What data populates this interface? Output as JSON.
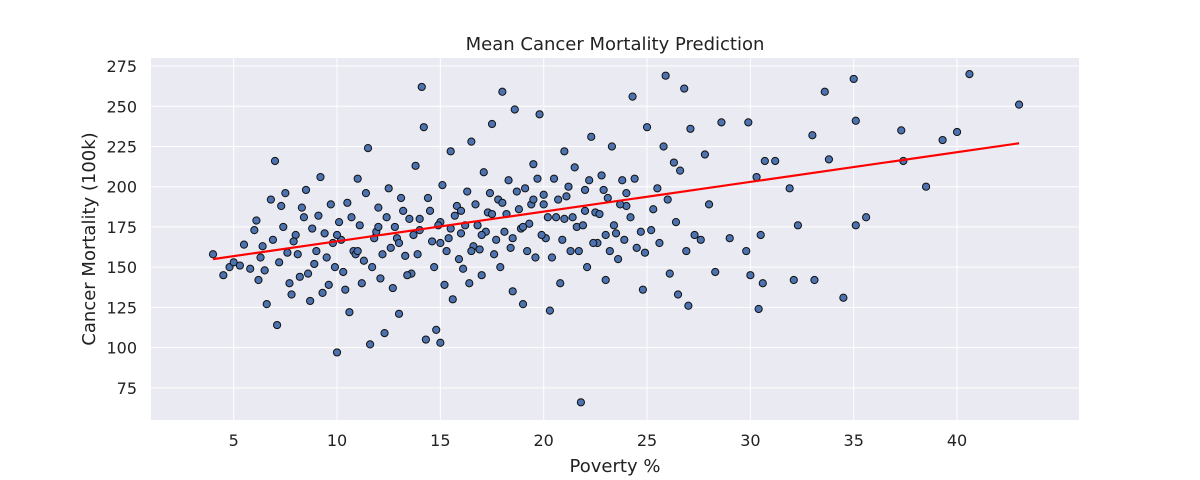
{
  "chart_data": {
    "type": "scatter",
    "title": "Mean Cancer Mortality Prediction",
    "xlabel": "Poverty %",
    "ylabel": "Cancer Mortality (100k)",
    "xlim": [
      1.0,
      45.9
    ],
    "ylim": [
      55,
      280
    ],
    "xticks": [
      5,
      10,
      15,
      20,
      25,
      30,
      35,
      40
    ],
    "yticks": [
      75,
      100,
      125,
      150,
      175,
      200,
      225,
      250,
      275
    ],
    "grid": true,
    "colors": {
      "background": "#EAEAF2",
      "grid": "#FFFFFF",
      "point_fill": "#4C72B0",
      "point_edge": "#111111",
      "regression_line": "#FF0000"
    },
    "series": [
      {
        "values": [
          [
            4.0,
            158
          ],
          [
            4.5,
            145
          ],
          [
            4.8,
            150
          ],
          [
            5.0,
            153
          ],
          [
            5.3,
            151
          ],
          [
            5.5,
            164
          ],
          [
            5.8,
            149
          ],
          [
            6.0,
            173
          ],
          [
            6.1,
            179
          ],
          [
            6.3,
            156
          ],
          [
            6.5,
            148
          ],
          [
            6.6,
            127
          ],
          [
            6.8,
            192
          ],
          [
            6.9,
            167
          ],
          [
            7.0,
            216
          ],
          [
            7.1,
            114
          ],
          [
            7.3,
            188
          ],
          [
            7.5,
            196
          ],
          [
            7.6,
            159
          ],
          [
            7.8,
            133
          ],
          [
            8.0,
            170
          ],
          [
            8.2,
            144
          ],
          [
            8.4,
            181
          ],
          [
            8.5,
            198
          ],
          [
            8.7,
            129
          ],
          [
            8.9,
            152
          ],
          [
            9.1,
            182
          ],
          [
            9.2,
            206
          ],
          [
            9.4,
            171
          ],
          [
            9.6,
            139
          ],
          [
            9.8,
            165
          ],
          [
            10.0,
            97
          ],
          [
            10.1,
            178
          ],
          [
            10.3,
            147
          ],
          [
            10.5,
            190
          ],
          [
            10.6,
            122
          ],
          [
            10.8,
            160
          ],
          [
            11.0,
            205
          ],
          [
            11.1,
            176
          ],
          [
            11.3,
            154
          ],
          [
            11.5,
            224
          ],
          [
            11.6,
            102
          ],
          [
            11.8,
            168
          ],
          [
            12.0,
            187
          ],
          [
            12.1,
            143
          ],
          [
            12.3,
            109
          ],
          [
            12.5,
            199
          ],
          [
            12.6,
            162
          ],
          [
            12.8,
            175
          ],
          [
            13.0,
            121
          ],
          [
            13.1,
            193
          ],
          [
            13.3,
            157
          ],
          [
            13.5,
            180
          ],
          [
            13.6,
            146
          ],
          [
            13.8,
            213
          ],
          [
            14.0,
            173
          ],
          [
            14.1,
            262
          ],
          [
            14.2,
            237
          ],
          [
            14.3,
            105
          ],
          [
            14.5,
            185
          ],
          [
            14.6,
            166
          ],
          [
            14.8,
            111
          ],
          [
            15.0,
            103
          ],
          [
            15.0,
            178
          ],
          [
            15.1,
            201
          ],
          [
            15.3,
            160
          ],
          [
            15.5,
            222
          ],
          [
            15.6,
            130
          ],
          [
            15.8,
            188
          ],
          [
            16.0,
            171
          ],
          [
            16.1,
            149
          ],
          [
            16.3,
            197
          ],
          [
            16.5,
            228
          ],
          [
            16.6,
            163
          ],
          [
            16.8,
            176
          ],
          [
            17.0,
            145
          ],
          [
            17.1,
            209
          ],
          [
            17.3,
            184
          ],
          [
            17.5,
            239
          ],
          [
            17.6,
            158
          ],
          [
            17.8,
            192
          ],
          [
            18.0,
            259
          ],
          [
            18.1,
            172
          ],
          [
            18.3,
            204
          ],
          [
            18.5,
            135
          ],
          [
            18.6,
            248
          ],
          [
            18.8,
            186
          ],
          [
            19.0,
            127
          ],
          [
            19.1,
            199
          ],
          [
            19.3,
            177
          ],
          [
            19.5,
            214
          ],
          [
            19.6,
            156
          ],
          [
            19.8,
            245
          ],
          [
            20.0,
            189
          ],
          [
            20.1,
            168
          ],
          [
            20.3,
            123
          ],
          [
            20.5,
            205
          ],
          [
            20.6,
            181
          ],
          [
            20.8,
            140
          ],
          [
            21.0,
            222
          ],
          [
            21.1,
            194
          ],
          [
            21.3,
            160
          ],
          [
            21.5,
            212
          ],
          [
            21.6,
            175
          ],
          [
            21.8,
            66
          ],
          [
            22.0,
            198
          ],
          [
            22.1,
            150
          ],
          [
            22.3,
            231
          ],
          [
            22.5,
            184
          ],
          [
            22.6,
            165
          ],
          [
            22.8,
            207
          ],
          [
            23.0,
            142
          ],
          [
            23.1,
            193
          ],
          [
            23.3,
            225
          ],
          [
            23.5,
            171
          ],
          [
            23.6,
            155
          ],
          [
            23.8,
            204
          ],
          [
            24.0,
            188
          ],
          [
            24.3,
            256
          ],
          [
            24.5,
            162
          ],
          [
            24.8,
            136
          ],
          [
            25.0,
            237
          ],
          [
            25.2,
            173
          ],
          [
            25.5,
            199
          ],
          [
            25.8,
            225
          ],
          [
            25.9,
            269
          ],
          [
            26.1,
            146
          ],
          [
            26.3,
            215
          ],
          [
            26.5,
            133
          ],
          [
            26.6,
            210
          ],
          [
            26.8,
            261
          ],
          [
            27.0,
            126
          ],
          [
            27.1,
            236
          ],
          [
            27.6,
            167
          ],
          [
            27.8,
            220
          ],
          [
            28.0,
            189
          ],
          [
            28.3,
            147
          ],
          [
            28.6,
            240
          ],
          [
            29.0,
            168
          ],
          [
            29.8,
            160
          ],
          [
            29.9,
            240
          ],
          [
            30.0,
            145
          ],
          [
            30.3,
            206
          ],
          [
            30.4,
            124
          ],
          [
            30.5,
            170
          ],
          [
            30.6,
            140
          ],
          [
            30.7,
            216
          ],
          [
            31.2,
            216
          ],
          [
            31.9,
            199
          ],
          [
            32.1,
            142
          ],
          [
            32.3,
            176
          ],
          [
            33.0,
            232
          ],
          [
            33.1,
            142
          ],
          [
            33.6,
            259
          ],
          [
            33.8,
            217
          ],
          [
            34.5,
            131
          ],
          [
            35.0,
            267
          ],
          [
            35.1,
            241
          ],
          [
            35.1,
            176
          ],
          [
            35.6,
            181
          ],
          [
            37.3,
            235
          ],
          [
            37.4,
            216
          ],
          [
            38.5,
            200
          ],
          [
            39.3,
            229
          ],
          [
            40.0,
            234
          ],
          [
            40.6,
            270
          ],
          [
            43.0,
            251
          ],
          [
            6.2,
            142
          ],
          [
            6.4,
            163
          ],
          [
            7.2,
            153
          ],
          [
            7.4,
            175
          ],
          [
            7.7,
            140
          ],
          [
            7.9,
            166
          ],
          [
            8.1,
            158
          ],
          [
            8.3,
            187
          ],
          [
            8.6,
            146
          ],
          [
            8.8,
            174
          ],
          [
            9.0,
            160
          ],
          [
            9.3,
            134
          ],
          [
            9.5,
            156
          ],
          [
            9.7,
            189
          ],
          [
            9.9,
            150
          ],
          [
            10.2,
            167
          ],
          [
            10.4,
            136
          ],
          [
            10.7,
            181
          ],
          [
            10.9,
            158
          ],
          [
            11.2,
            140
          ],
          [
            11.4,
            196
          ],
          [
            11.7,
            150
          ],
          [
            11.9,
            172
          ],
          [
            12.2,
            158
          ],
          [
            12.4,
            181
          ],
          [
            12.7,
            137
          ],
          [
            12.9,
            168
          ],
          [
            13.2,
            185
          ],
          [
            13.4,
            145
          ],
          [
            13.7,
            170
          ],
          [
            13.9,
            158
          ],
          [
            14.4,
            193
          ],
          [
            14.7,
            150
          ],
          [
            14.9,
            176
          ],
          [
            15.2,
            139
          ],
          [
            15.4,
            168
          ],
          [
            15.7,
            182
          ],
          [
            15.9,
            155
          ],
          [
            16.2,
            176
          ],
          [
            16.4,
            140
          ],
          [
            16.7,
            189
          ],
          [
            16.9,
            161
          ],
          [
            17.2,
            172
          ],
          [
            17.4,
            196
          ],
          [
            17.7,
            167
          ],
          [
            17.9,
            150
          ],
          [
            18.2,
            183
          ],
          [
            18.4,
            162
          ],
          [
            18.7,
            197
          ],
          [
            18.9,
            174
          ],
          [
            19.2,
            160
          ],
          [
            19.4,
            189
          ],
          [
            19.7,
            205
          ],
          [
            19.9,
            170
          ],
          [
            20.2,
            181
          ],
          [
            20.4,
            156
          ],
          [
            20.7,
            192
          ],
          [
            20.9,
            167
          ],
          [
            21.2,
            200
          ],
          [
            21.4,
            181
          ],
          [
            21.7,
            160
          ],
          [
            21.9,
            176
          ],
          [
            22.2,
            204
          ],
          [
            22.4,
            165
          ],
          [
            22.7,
            183
          ],
          [
            22.9,
            198
          ],
          [
            23.2,
            160
          ],
          [
            23.4,
            176
          ],
          [
            23.7,
            189
          ],
          [
            23.9,
            167
          ],
          [
            24.2,
            181
          ],
          [
            24.4,
            205
          ],
          [
            24.7,
            172
          ],
          [
            24.9,
            159
          ],
          [
            25.3,
            186
          ],
          [
            25.6,
            165
          ],
          [
            26.0,
            192
          ],
          [
            26.4,
            178
          ],
          [
            26.9,
            160
          ],
          [
            27.3,
            170
          ],
          [
            10.0,
            170
          ],
          [
            11.0,
            160
          ],
          [
            12.0,
            175
          ],
          [
            13.0,
            165
          ],
          [
            14.0,
            180
          ],
          [
            15.0,
            165
          ],
          [
            16.0,
            185
          ],
          [
            17.0,
            170
          ],
          [
            18.0,
            190
          ],
          [
            19.0,
            175
          ],
          [
            20.0,
            195
          ],
          [
            21.0,
            180
          ],
          [
            22.0,
            185
          ],
          [
            23.0,
            170
          ],
          [
            24.0,
            196
          ],
          [
            15.5,
            174
          ],
          [
            16.5,
            160
          ],
          [
            17.5,
            183
          ],
          [
            18.5,
            168
          ],
          [
            19.5,
            192
          ]
        ]
      }
    ],
    "regression": {
      "x": [
        4.0,
        43.0
      ],
      "y": [
        155,
        227
      ]
    }
  }
}
